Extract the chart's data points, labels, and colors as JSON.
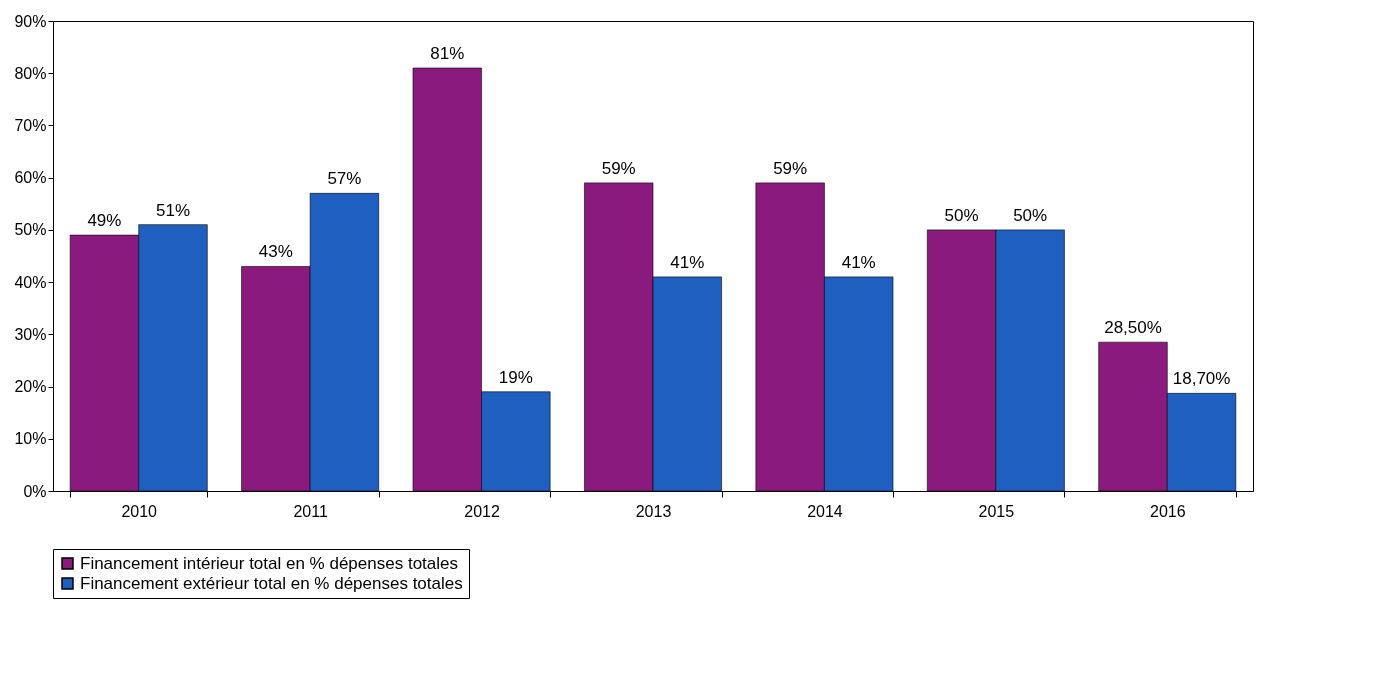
{
  "chart_data": {
    "type": "bar",
    "categories": [
      "2010",
      "2011",
      "2012",
      "2013",
      "2014",
      "2015",
      "2016"
    ],
    "series": [
      {
        "name": "Financement intérieur total en % dépenses totales",
        "color": "#8b1a7e",
        "values": [
          49,
          43,
          81,
          59,
          59,
          50,
          28.5
        ],
        "value_labels": [
          "49%",
          "43%",
          "81%",
          "59%",
          "59%",
          "50%",
          "28,50%"
        ]
      },
      {
        "name": "Financement extérieur total en % dépenses totales",
        "color": "#1f5fbf",
        "values": [
          51,
          57,
          19,
          41,
          41,
          50,
          18.7
        ],
        "value_labels": [
          "51%",
          "57%",
          "19%",
          "41%",
          "41%",
          "50%",
          "18,70%"
        ]
      }
    ],
    "ylim": [
      0,
      90
    ],
    "yticks": [
      {
        "value": 0,
        "label": "0%"
      },
      {
        "value": 10,
        "label": "10%"
      },
      {
        "value": 20,
        "label": "20%"
      },
      {
        "value": 30,
        "label": "30%"
      },
      {
        "value": 40,
        "label": "40%"
      },
      {
        "value": 50,
        "label": "50%"
      },
      {
        "value": 60,
        "label": "60%"
      },
      {
        "value": 70,
        "label": "70%"
      },
      {
        "value": 80,
        "label": "80%"
      },
      {
        "value": 90,
        "label": "90%"
      }
    ],
    "grid": false,
    "legend": "bottom"
  }
}
